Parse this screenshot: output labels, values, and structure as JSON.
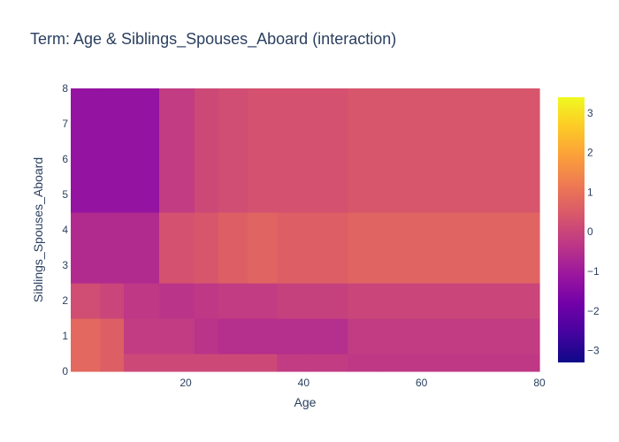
{
  "chart_data": {
    "type": "heatmap",
    "title": "Term: Age & Siblings_Spouses_Aboard (interaction)",
    "xlabel": "Age",
    "ylabel": "Siblings_Spouses_Aboard",
    "xlim": [
      0.5,
      80
    ],
    "ylim": [
      0,
      8
    ],
    "x_ticks": [
      20,
      40,
      60,
      80
    ],
    "y_ticks": [
      0,
      1,
      2,
      3,
      4,
      5,
      6,
      7,
      8
    ],
    "colorbar": {
      "range": [
        -3.3,
        3.4
      ],
      "ticks": [
        -3,
        -2,
        -1,
        0,
        1,
        2,
        3
      ],
      "colorscale": [
        "#0d0887",
        "#46039f",
        "#7201a8",
        "#9c179e",
        "#bd3786",
        "#d8576b",
        "#ed7953",
        "#fb9f3a",
        "#fdca26",
        "#f0f921"
      ]
    },
    "x_edges": [
      0.5,
      5.5,
      9.5,
      15.5,
      21.5,
      25.5,
      30.5,
      35.5,
      40.5,
      47.5,
      52.5,
      80
    ],
    "y_edges": [
      0,
      0.5,
      1.5,
      2.5,
      4.5,
      8
    ],
    "z": [
      [
        0.8,
        0.6,
        0.1,
        0.1,
        0.1,
        0.1,
        0.1,
        -0.2,
        -0.2,
        -0.3,
        -0.3
      ],
      [
        0.8,
        0.6,
        -0.2,
        -0.2,
        -0.4,
        -0.5,
        -0.5,
        -0.5,
        -0.5,
        -0.2,
        -0.2
      ],
      [
        0.2,
        0.0,
        -0.3,
        -0.4,
        -0.3,
        -0.2,
        -0.2,
        -0.1,
        -0.1,
        0.0,
        0.0
      ],
      [
        -0.6,
        -0.6,
        -0.6,
        0.3,
        0.4,
        0.6,
        0.7,
        0.6,
        0.6,
        0.7,
        0.7
      ],
      [
        -1.2,
        -1.2,
        -1.2,
        -0.2,
        0.1,
        0.2,
        0.3,
        0.3,
        0.3,
        0.4,
        0.4
      ]
    ]
  }
}
